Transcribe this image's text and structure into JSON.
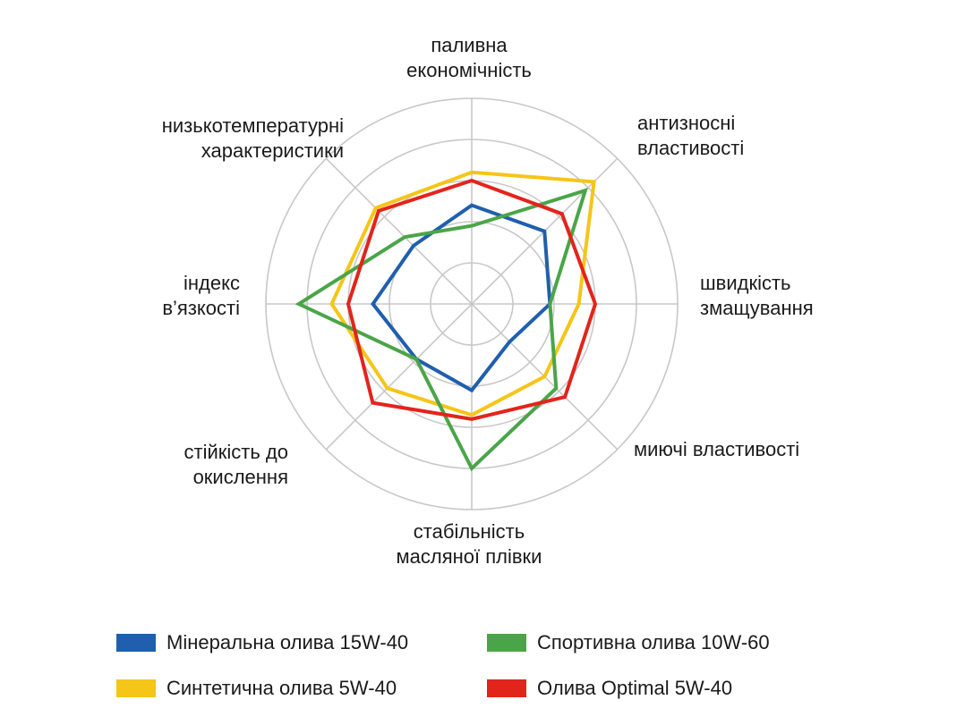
{
  "chart_data": {
    "type": "radar",
    "axes": [
      [
        "паливна",
        "економічність"
      ],
      [
        "антизносні",
        "властивості"
      ],
      [
        "швидкість",
        "змащування"
      ],
      [
        "миючі властивості"
      ],
      [
        "стабільність",
        "масляної плівки"
      ],
      [
        "стійкість до",
        "окислення"
      ],
      [
        "індекс",
        "в’язкості"
      ],
      [
        "низькотемпературні",
        "характеристики"
      ]
    ],
    "rlim": [
      0,
      5
    ],
    "rings": [
      1,
      2,
      3,
      4,
      5
    ],
    "grid": true,
    "legend_position": "bottom",
    "series": [
      {
        "name": "Мінеральна олива 15W-40",
        "color": "#1f5fad",
        "values": [
          2.4,
          2.5,
          1.9,
          1.3,
          2.1,
          1.9,
          2.4,
          2.0
        ]
      },
      {
        "name": "Синтетична олива 5W-40",
        "color": "#f5c518",
        "values": [
          3.2,
          4.2,
          2.6,
          2.5,
          2.7,
          2.9,
          3.4,
          3.3
        ]
      },
      {
        "name": "Спортивна олива 10W-60",
        "color": "#4aa548",
        "values": [
          1.9,
          3.9,
          1.9,
          2.9,
          4.0,
          1.9,
          4.2,
          2.3
        ]
      },
      {
        "name": "Олива Optimal 5W-40",
        "color": "#e3241b",
        "values": [
          3.0,
          3.1,
          3.0,
          3.2,
          2.8,
          3.4,
          3.0,
          3.2
        ]
      }
    ]
  }
}
